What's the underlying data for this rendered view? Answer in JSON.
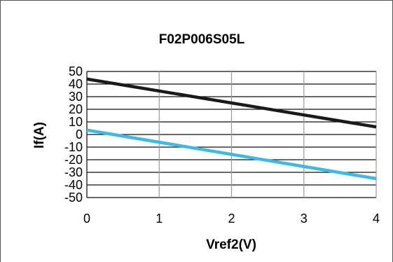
{
  "chart_data": {
    "type": "line",
    "title": "F02P006S05L",
    "xlabel": "Vref2(V)",
    "ylabel": "If(A)",
    "x": [
      0,
      4
    ],
    "xlim": [
      0,
      4
    ],
    "ylim": [
      -50,
      50
    ],
    "x_ticks": [
      "0",
      "1",
      "2",
      "3",
      "4"
    ],
    "y_ticks": [
      "50",
      "40",
      "30",
      "20",
      "10",
      "0",
      "-10",
      "-20",
      "-30",
      "-40",
      "-50"
    ],
    "grid": true,
    "legend": "none",
    "series": [
      {
        "values": [
          44,
          6
        ],
        "color": "#1a1a1a"
      },
      {
        "values": [
          3.5,
          -35
        ],
        "color": "#3db9e6"
      }
    ]
  }
}
